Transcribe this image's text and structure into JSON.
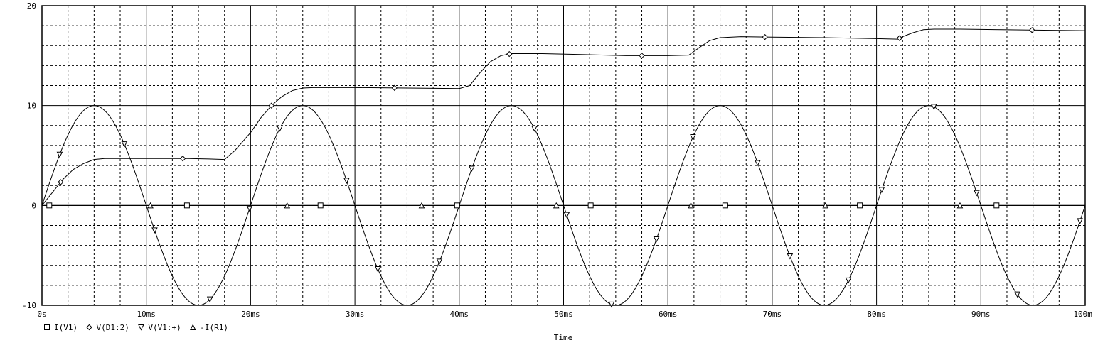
{
  "chart_data": {
    "type": "line",
    "xlabel": "Time",
    "ylabel": "",
    "xlim": [
      0,
      100
    ],
    "ylim": [
      -10,
      20
    ],
    "x_ticks": [
      0,
      10,
      20,
      30,
      40,
      50,
      60,
      70,
      80,
      90,
      100
    ],
    "x_tick_labels": [
      "0s",
      "10ms",
      "20ms",
      "30ms",
      "40ms",
      "50ms",
      "60ms",
      "70ms",
      "80ms",
      "90ms",
      "100ms"
    ],
    "y_ticks": [
      -10,
      0,
      10,
      20
    ],
    "y_tick_labels": [
      "-10",
      "0",
      "10",
      "20"
    ],
    "grid": true,
    "legend_position": "bottom-left",
    "series": [
      {
        "name": "I(V1)",
        "marker": "square",
        "x": [
          0,
          10,
          13.9,
          20,
          26.7,
          30,
          33.5,
          40,
          50,
          52.6,
          60,
          65.5,
          70,
          78.4,
          80,
          90,
          91.5,
          100
        ],
        "y": [
          0,
          0,
          0,
          0,
          0,
          0,
          0,
          0,
          0,
          0,
          0,
          0,
          0,
          0,
          0,
          0,
          0,
          0
        ],
        "marker_x": [
          0.7,
          13.9,
          26.7,
          39.8,
          52.6,
          65.5,
          78.4,
          91.5
        ]
      },
      {
        "name": "V(D1:2)",
        "marker": "diamond",
        "x": [
          0,
          1,
          2,
          3,
          4,
          5,
          6,
          8,
          10,
          12,
          14,
          16,
          17.5,
          18.5,
          20,
          21,
          22,
          23,
          24,
          25,
          26,
          30,
          35,
          40,
          41,
          42,
          43,
          44,
          45,
          48,
          52,
          56,
          60,
          62,
          63,
          64,
          65,
          67,
          70,
          75,
          80,
          82,
          82.5,
          83.5,
          84.5,
          85.5,
          88,
          92,
          96,
          100
        ],
        "y": [
          0,
          1.3,
          2.6,
          3.6,
          4.2,
          4.6,
          4.7,
          4.7,
          4.7,
          4.7,
          4.7,
          4.65,
          4.6,
          5.5,
          7.3,
          8.8,
          10.0,
          10.9,
          11.5,
          11.75,
          11.8,
          11.8,
          11.75,
          11.7,
          12.0,
          13.3,
          14.4,
          15.0,
          15.2,
          15.2,
          15.1,
          15.0,
          15.0,
          15.05,
          15.8,
          16.5,
          16.8,
          16.9,
          16.85,
          16.8,
          16.7,
          16.65,
          16.9,
          17.3,
          17.6,
          17.65,
          17.65,
          17.6,
          17.55,
          17.5
        ],
        "marker_x": [
          1.8,
          13.5,
          22.0,
          33.8,
          44.8,
          57.5,
          69.3,
          82.2,
          94.9
        ]
      },
      {
        "name": "V(V1:+)",
        "marker": "triangle-down",
        "function": "10*sin(2*pi*t/20ms)",
        "x": [
          0,
          1,
          2,
          3,
          4,
          5,
          6,
          7,
          8,
          9,
          10,
          11,
          12,
          13,
          14,
          15,
          16,
          17,
          18,
          19,
          20,
          21,
          22,
          23,
          24,
          25,
          26,
          27,
          28,
          29,
          30,
          31,
          32,
          33,
          34,
          35,
          36,
          37,
          38,
          39,
          40,
          41,
          42,
          43,
          44,
          45,
          46,
          47,
          48,
          49,
          50,
          51,
          52,
          53,
          54,
          55,
          56,
          57,
          58,
          59,
          60,
          61,
          62,
          63,
          64,
          65,
          66,
          67,
          68,
          69,
          70,
          71,
          72,
          73,
          74,
          75,
          76,
          77,
          78,
          79,
          80,
          81,
          82,
          83,
          84,
          85,
          86,
          87,
          88,
          89,
          90,
          91,
          92,
          93,
          94,
          95,
          96,
          97,
          98,
          99,
          100
        ],
        "y": [
          0,
          3.09,
          5.88,
          8.09,
          9.51,
          10,
          9.51,
          8.09,
          5.88,
          3.09,
          0,
          -3.09,
          -5.88,
          -8.09,
          -9.51,
          -10,
          -9.51,
          -8.09,
          -5.88,
          -3.09,
          0,
          3.09,
          5.88,
          8.09,
          9.51,
          10,
          9.51,
          8.09,
          5.88,
          3.09,
          0,
          -3.09,
          -5.88,
          -8.09,
          -9.51,
          -10,
          -9.51,
          -8.09,
          -5.88,
          -3.09,
          0,
          3.09,
          5.88,
          8.09,
          9.51,
          10,
          9.51,
          8.09,
          5.88,
          3.09,
          0,
          -3.09,
          -5.88,
          -8.09,
          -9.51,
          -10,
          -9.51,
          -8.09,
          -5.88,
          -3.09,
          0,
          3.09,
          5.88,
          8.09,
          9.51,
          10,
          9.51,
          8.09,
          5.88,
          3.09,
          0,
          -3.09,
          -5.88,
          -8.09,
          -9.51,
          -10,
          -9.51,
          -8.09,
          -5.88,
          -3.09,
          0,
          3.09,
          5.88,
          8.09,
          9.51,
          10,
          9.51,
          8.09,
          5.88,
          3.09,
          0,
          -3.09,
          -5.88,
          -8.09,
          -9.51,
          -10,
          -9.51,
          -8.09,
          -5.88,
          -3.09,
          0
        ],
        "marker_x": [
          1.7,
          7.9,
          10.8,
          16.1,
          19.9,
          22.8,
          29.2,
          32.2,
          38.1,
          41.2,
          47.2,
          50.3,
          54.6,
          58.9,
          62.4,
          68.6,
          71.7,
          77.3,
          80.5,
          85.5,
          89.6,
          93.5,
          99.5
        ]
      },
      {
        "name": "-I(R1)",
        "marker": "triangle-up",
        "x": [
          0,
          100
        ],
        "y": [
          0,
          0
        ],
        "marker_x": [
          10.4,
          23.5,
          36.4,
          49.3,
          62.2,
          75.1,
          88.0
        ]
      }
    ]
  }
}
